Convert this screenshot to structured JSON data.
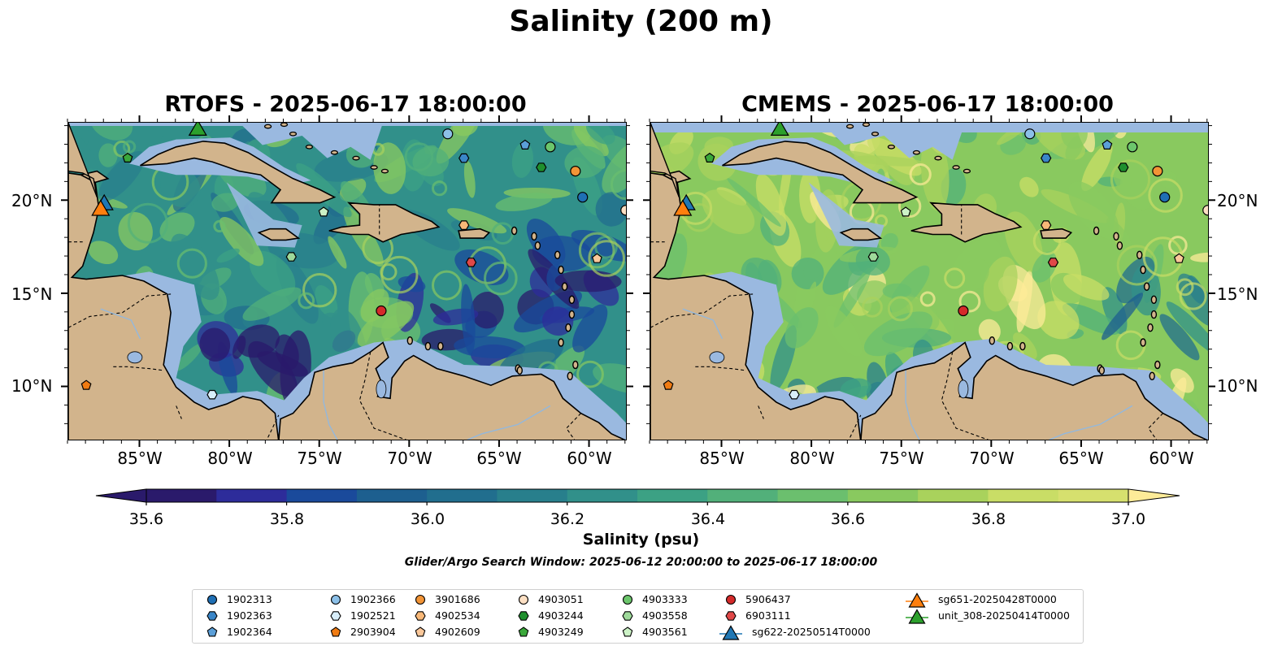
{
  "title": "Salinity (200 m)",
  "panels": [
    {
      "title": "RTOFS - 2025-06-17 18:00:00"
    },
    {
      "title": "CMEMS - 2025-06-17 18:00:00"
    }
  ],
  "lon_ticks": [
    "85°W",
    "80°W",
    "75°W",
    "70°W",
    "65°W",
    "60°W"
  ],
  "lat_ticks": [
    "20°N",
    "15°N",
    "10°N"
  ],
  "colorbar": {
    "label": "Salinity (psu)",
    "ticks": [
      "35.6",
      "35.8",
      "36.0",
      "36.2",
      "36.4",
      "36.6",
      "36.8",
      "37.0"
    ],
    "range": [
      35.6,
      37.0
    ],
    "extend": "both",
    "colors": [
      "#2a1a6b",
      "#2d2c9a",
      "#1a4a9b",
      "#1d5f8f",
      "#216e8e",
      "#287f8c",
      "#31908a",
      "#3ca184",
      "#52b07a",
      "#6bbf6e",
      "#89c95f",
      "#a9d25c",
      "#c9dd66",
      "#fdeb98"
    ]
  },
  "subtitle": "Glider/Argo Search Window: 2025-06-12 20:00:00 to 2025-06-17 18:00:00",
  "map_colors": {
    "land": "#d2b48c",
    "shelf": "#9ab9e0",
    "deep": "#2a1a6b"
  },
  "legend": [
    {
      "label": "1902313",
      "marker": "circle",
      "color": "#1f6fb4"
    },
    {
      "label": "1902363",
      "marker": "hexagon",
      "color": "#3a86c8"
    },
    {
      "label": "1902364",
      "marker": "pentagon",
      "color": "#5b9fd8"
    },
    {
      "label": "1902366",
      "marker": "circle",
      "color": "#8cc0e8"
    },
    {
      "label": "1902521",
      "marker": "hexagon",
      "color": "#d8eefa"
    },
    {
      "label": "2903904",
      "marker": "pentagon",
      "color": "#f07b12"
    },
    {
      "label": "3901686",
      "marker": "circle",
      "color": "#f29436"
    },
    {
      "label": "4902534",
      "marker": "hexagon",
      "color": "#f8b878"
    },
    {
      "label": "4902609",
      "marker": "pentagon",
      "color": "#fbc89a"
    },
    {
      "label": "4903051",
      "marker": "circle",
      "color": "#fde0c4"
    },
    {
      "label": "4903244",
      "marker": "hexagon",
      "color": "#1f8f2e"
    },
    {
      "label": "4903249",
      "marker": "pentagon",
      "color": "#3aa83a"
    },
    {
      "label": "4903333",
      "marker": "circle",
      "color": "#6cc66c"
    },
    {
      "label": "4903558",
      "marker": "hexagon",
      "color": "#9ed99a"
    },
    {
      "label": "4903561",
      "marker": "pentagon",
      "color": "#ccf2c6"
    },
    {
      "label": "5906437",
      "marker": "circle",
      "color": "#d42a2a"
    },
    {
      "label": "6903111",
      "marker": "hexagon",
      "color": "#e04848"
    },
    {
      "label": "sg622-20250514T0000",
      "marker": "triangle",
      "color": "#1f77b4"
    },
    {
      "label": "sg651-20250428T0000",
      "marker": "triangle",
      "color": "#ff7f0e"
    },
    {
      "label": "unit_308-20250414T0000",
      "marker": "triangle",
      "color": "#2ca02c"
    }
  ],
  "observations": [
    {
      "id": "1902313",
      "lon": -60.4,
      "lat": 20.2
    },
    {
      "id": "1902363",
      "lon": -67.0,
      "lat": 22.3
    },
    {
      "id": "1902364",
      "lon": -63.6,
      "lat": 23.0
    },
    {
      "id": "1902366",
      "lon": -67.9,
      "lat": 23.6
    },
    {
      "id": "1902521",
      "lon": -81.0,
      "lat": 9.6
    },
    {
      "id": "2903904",
      "lon": -88.0,
      "lat": 10.1
    },
    {
      "id": "3901686",
      "lon": -60.8,
      "lat": 21.6
    },
    {
      "id": "4902534",
      "lon": -67.0,
      "lat": 18.7
    },
    {
      "id": "4902609",
      "lon": -59.6,
      "lat": 16.9
    },
    {
      "id": "4903051",
      "lon": -58.0,
      "lat": 19.5
    },
    {
      "id": "4903244",
      "lon": -62.7,
      "lat": 21.8
    },
    {
      "id": "4903249",
      "lon": -85.7,
      "lat": 22.3
    },
    {
      "id": "4903333",
      "lon": -62.2,
      "lat": 22.9
    },
    {
      "id": "4903558",
      "lon": -76.6,
      "lat": 17.0
    },
    {
      "id": "4903561",
      "lon": -74.8,
      "lat": 19.4
    },
    {
      "id": "5906437",
      "lon": -71.6,
      "lat": 14.1
    },
    {
      "id": "6903111",
      "lon": -66.6,
      "lat": 16.7
    },
    {
      "id": "sg622-20250514T0000",
      "lon": -87.0,
      "lat": 19.9
    },
    {
      "id": "sg651-20250428T0000",
      "lon": -87.2,
      "lat": 19.6
    },
    {
      "id": "unit_308-20250414T0000",
      "lon": -81.8,
      "lat": 23.9
    }
  ]
}
